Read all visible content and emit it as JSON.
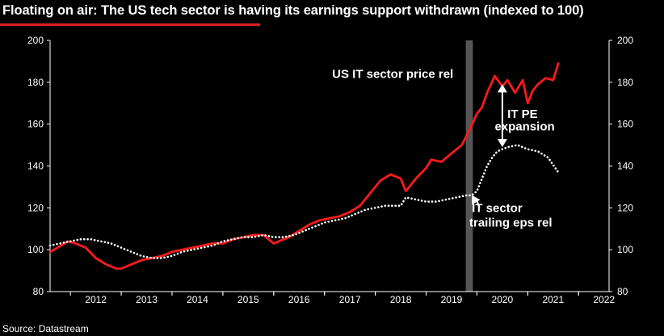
{
  "title": "Floating on air: The US tech sector is having its earnings support withdrawn (indexed to 100)",
  "source": "Source: Datastream",
  "colors": {
    "background": "#000000",
    "price": "#ff1a1a",
    "eps": "#ffffff",
    "band": "#555555",
    "accent": "#e02020"
  },
  "chart_data": {
    "type": "line",
    "title": "Floating on air: The US tech sector is having its earnings support withdrawn (indexed to 100)",
    "ylim": [
      80,
      200
    ],
    "yticks": [
      80,
      100,
      120,
      140,
      160,
      180,
      200
    ],
    "xlim": [
      2011.6,
      2022.6
    ],
    "x_tick_labels": [
      "2012",
      "2013",
      "2014",
      "2015",
      "2016",
      "2017",
      "2018",
      "2019",
      "2020",
      "2021",
      "2022"
    ],
    "grid": false,
    "shaded_period": [
      2019.78,
      2019.92
    ],
    "series": [
      {
        "name": "US IT sector price rel",
        "style": "solid",
        "color": "#ff1a1a",
        "x": [
          2011.6,
          2011.75,
          2011.95,
          2012.1,
          2012.3,
          2012.5,
          2012.7,
          2012.9,
          2013.0,
          2013.2,
          2013.4,
          2013.6,
          2013.8,
          2014.0,
          2014.2,
          2014.4,
          2014.6,
          2014.8,
          2015.0,
          2015.2,
          2015.4,
          2015.6,
          2015.8,
          2016.0,
          2016.1,
          2016.3,
          2016.5,
          2016.7,
          2016.9,
          2017.1,
          2017.3,
          2017.5,
          2017.7,
          2017.9,
          2018.1,
          2018.3,
          2018.5,
          2018.6,
          2018.8,
          2019.0,
          2019.1,
          2019.3,
          2019.5,
          2019.7,
          2019.85,
          2020.0,
          2020.1,
          2020.2,
          2020.35,
          2020.5,
          2020.6,
          2020.75,
          2020.9,
          2021.0,
          2021.1,
          2021.2,
          2021.35,
          2021.5,
          2021.6
        ],
        "values": [
          99,
          101,
          104,
          103,
          101,
          96,
          93,
          91,
          91,
          93,
          95,
          96,
          97,
          99,
          100,
          101,
          102,
          103,
          103,
          105,
          106,
          107,
          107,
          103,
          104,
          106,
          109,
          112,
          114,
          115,
          116,
          118,
          121,
          127,
          133,
          136,
          134,
          128,
          134,
          139,
          143,
          142,
          146,
          150,
          157,
          165,
          168,
          175,
          183,
          178,
          181,
          175,
          181,
          170,
          176,
          179,
          182,
          181,
          189
        ]
      },
      {
        "name": "IT sector trailing eps rel",
        "style": "dotted",
        "color": "#ffffff",
        "x": [
          2011.6,
          2011.8,
          2012.0,
          2012.2,
          2012.4,
          2012.6,
          2012.8,
          2013.0,
          2013.2,
          2013.4,
          2013.6,
          2013.8,
          2014.0,
          2014.2,
          2014.4,
          2014.6,
          2014.8,
          2015.0,
          2015.2,
          2015.4,
          2015.6,
          2015.8,
          2016.0,
          2016.2,
          2016.4,
          2016.6,
          2016.8,
          2017.0,
          2017.2,
          2017.4,
          2017.6,
          2017.8,
          2018.0,
          2018.2,
          2018.4,
          2018.5,
          2018.6,
          2018.8,
          2019.0,
          2019.2,
          2019.4,
          2019.6,
          2019.8,
          2019.9,
          2020.0,
          2020.1,
          2020.2,
          2020.3,
          2020.4,
          2020.5,
          2020.6,
          2020.8,
          2021.0,
          2021.2,
          2021.4,
          2021.6
        ],
        "values": [
          102,
          103,
          104,
          105,
          105,
          104,
          103,
          101,
          99,
          97,
          96,
          96,
          97,
          99,
          100,
          101,
          102,
          104,
          105,
          106,
          106,
          107,
          106,
          106,
          107,
          109,
          111,
          113,
          114,
          115,
          117,
          119,
          120,
          121,
          121,
          121,
          125,
          124,
          123,
          123,
          124,
          125,
          126,
          126,
          128,
          134,
          140,
          144,
          147,
          148,
          149,
          150,
          148,
          147,
          144,
          137
        ]
      }
    ],
    "annotations": [
      {
        "text": "US IT sector price rel",
        "data_x": 2017.15,
        "data_y": 182
      },
      {
        "text": "IT PE",
        "data_x": 2020.6,
        "data_y": 163
      },
      {
        "text": "expansion",
        "data_x": 2020.35,
        "data_y": 157
      },
      {
        "text": "IT sector",
        "data_x": 2019.9,
        "data_y": 118
      },
      {
        "text": "trailing eps rel",
        "data_x": 2019.85,
        "data_y": 111
      }
    ]
  }
}
